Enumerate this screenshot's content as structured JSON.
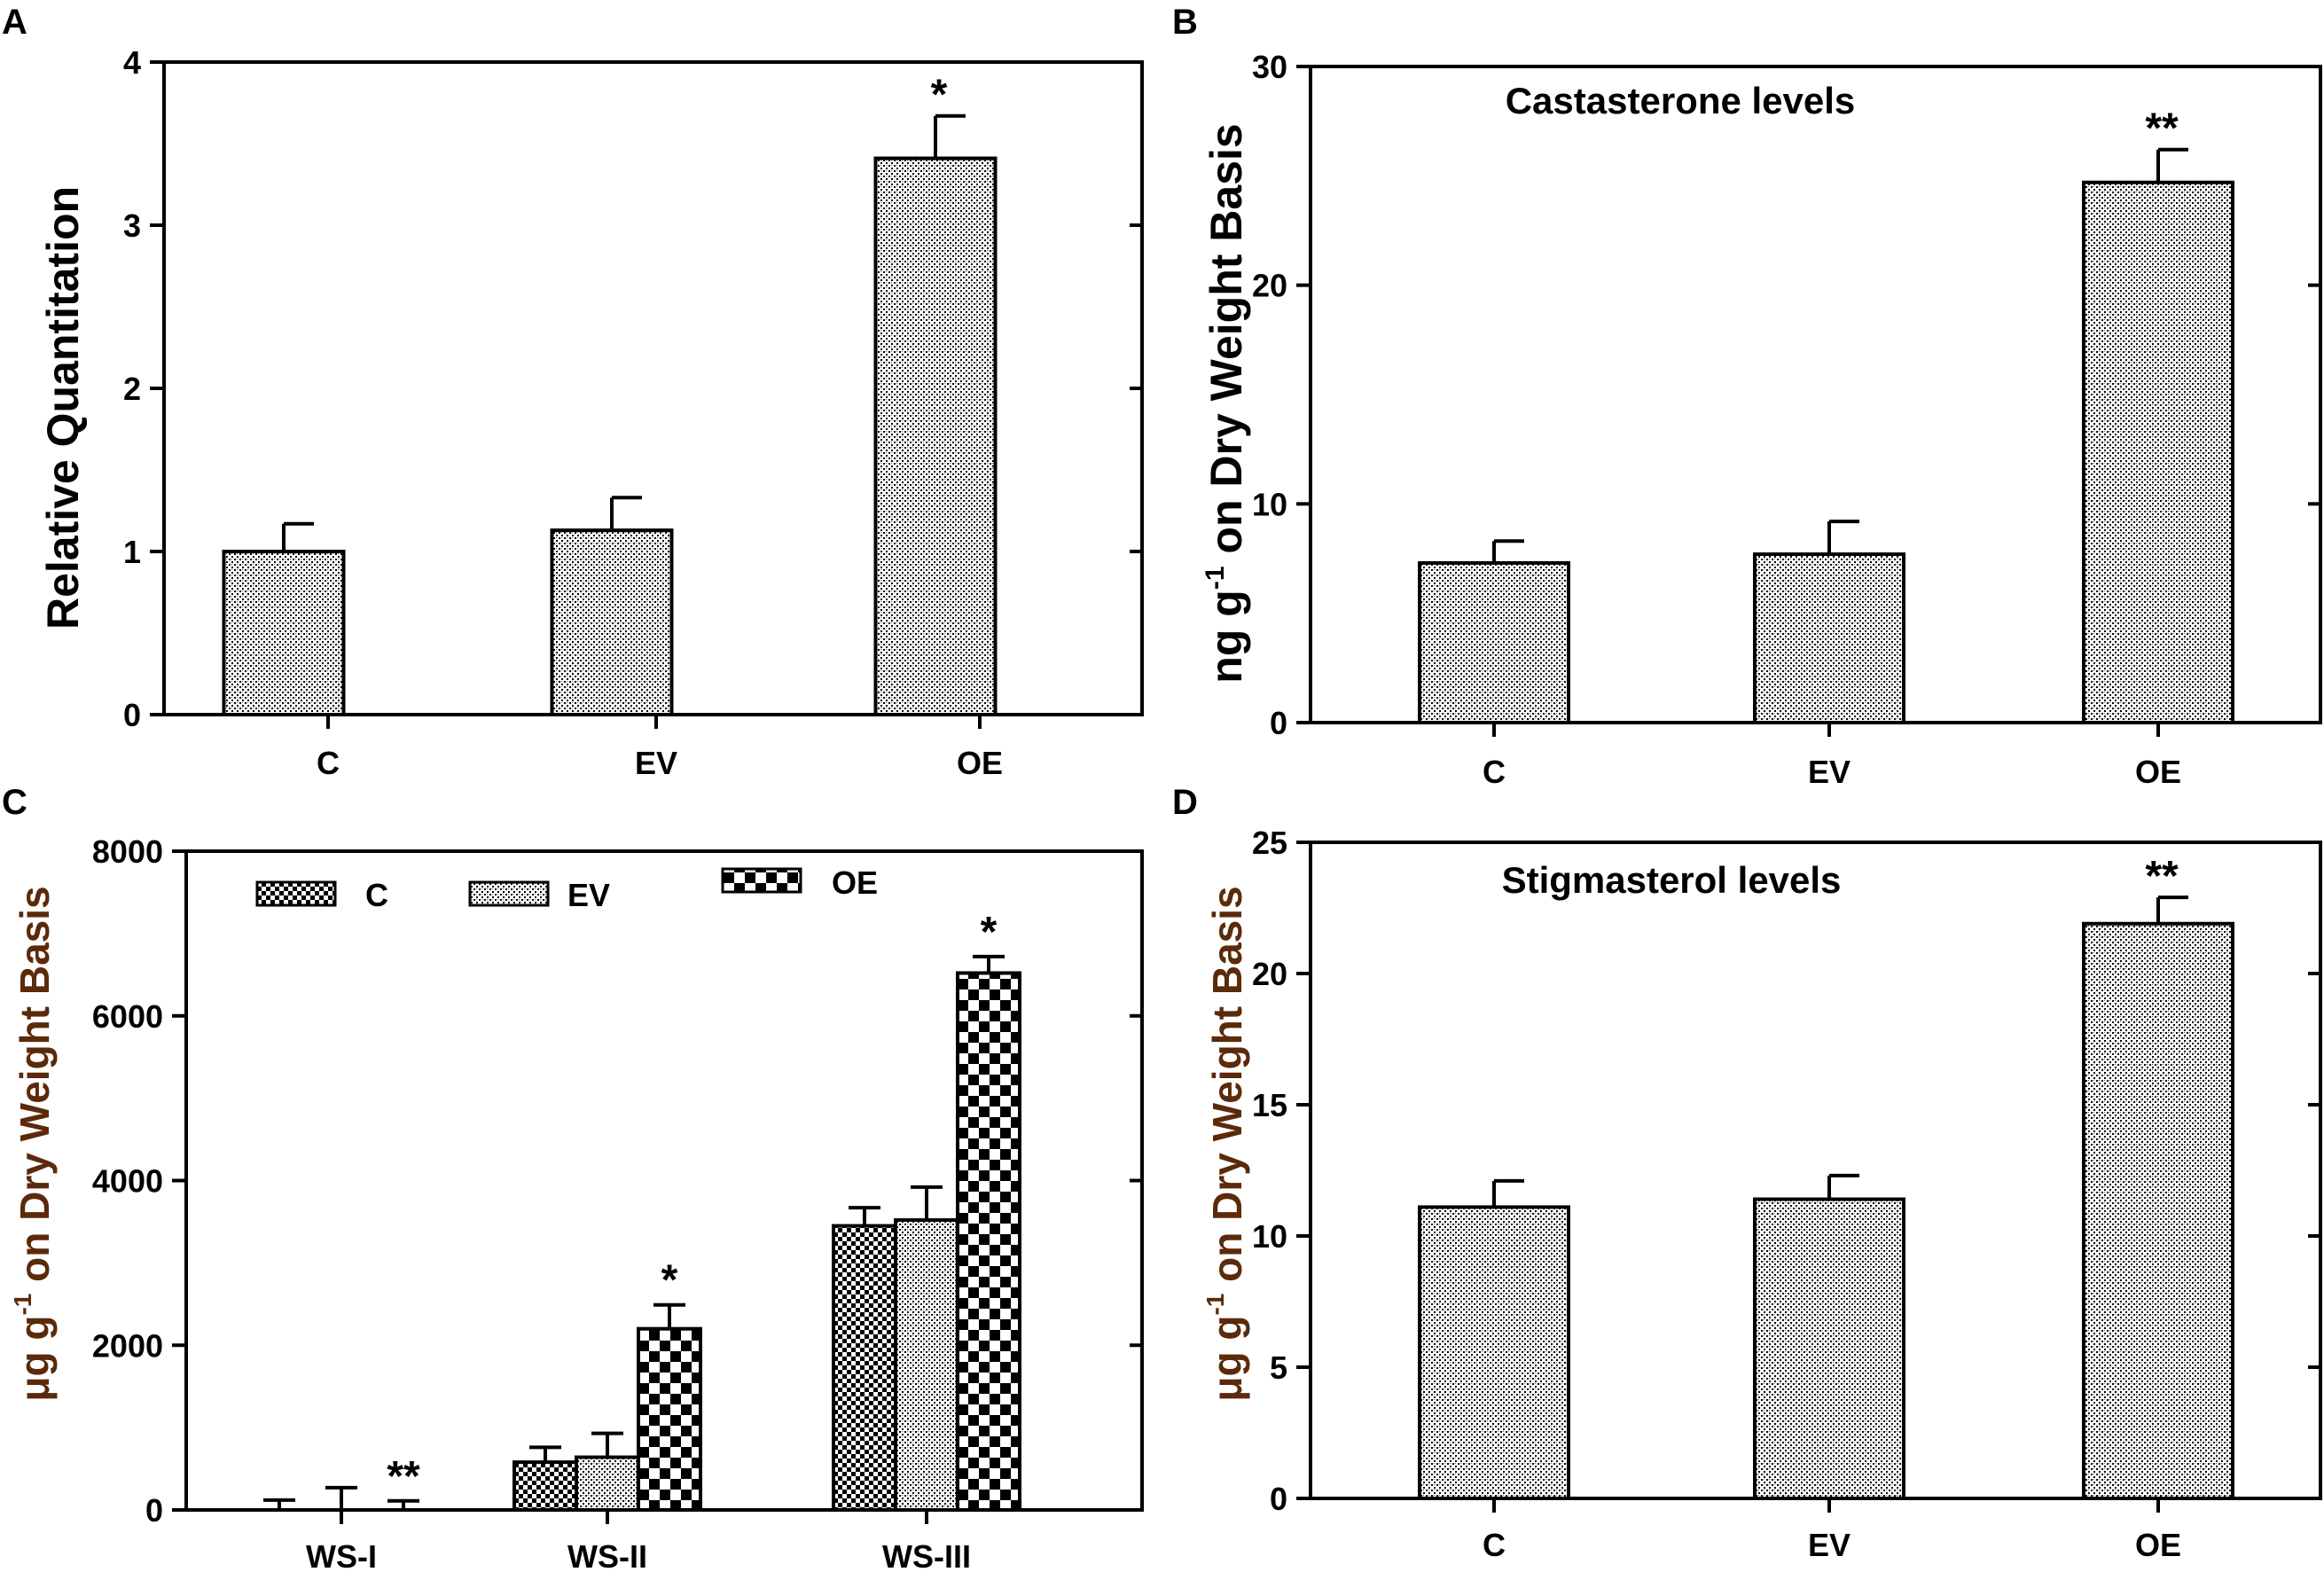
{
  "chart_data": [
    {
      "panel": "A",
      "type": "bar",
      "title": "",
      "ylabel": "Relative Quantitation",
      "categories": [
        "C",
        "EV",
        "OE"
      ],
      "values": [
        1.0,
        1.13,
        3.41
      ],
      "errors": [
        0.17,
        0.2,
        0.26
      ],
      "significance": [
        "",
        "",
        "*"
      ],
      "ylim": [
        0,
        4
      ],
      "yticks": [
        0,
        1,
        2,
        3,
        4
      ],
      "pattern": "stipple"
    },
    {
      "panel": "B",
      "type": "bar",
      "title": "Castasterone levels",
      "ylabel": "ng g-1 on Dry Weight Basis",
      "ylabel_parts": {
        "pre": "ng g",
        "sup": "-1",
        "post": " on  Dry Weight Basis"
      },
      "categories": [
        "C",
        "EV",
        "OE"
      ],
      "values": [
        7.3,
        7.7,
        24.7
      ],
      "errors": [
        1.0,
        1.5,
        1.5
      ],
      "significance": [
        "",
        "",
        "**"
      ],
      "ylim": [
        0,
        30
      ],
      "yticks": [
        0,
        10,
        20,
        30
      ],
      "pattern": "stipple"
    },
    {
      "panel": "C",
      "type": "bar",
      "title": "",
      "ylabel": "μg g-1 on Dry Weight Basis",
      "ylabel_parts": {
        "pre": "μg g",
        "sup": "-1",
        "post": " on Dry Weight Basis"
      },
      "categories": [
        "WS-I",
        "WS-II",
        "WS-III"
      ],
      "series": [
        {
          "name": "C",
          "values": [
            0,
            580,
            3450
          ],
          "errors": [
            120,
            180,
            220
          ],
          "pattern": "check-fine"
        },
        {
          "name": "EV",
          "values": [
            0,
            640,
            3520
          ],
          "errors": [
            270,
            290,
            400
          ],
          "pattern": "stipple"
        },
        {
          "name": "OE",
          "values": [
            0,
            2200,
            6520
          ],
          "errors": [
            110,
            290,
            200
          ],
          "pattern": "check-large"
        }
      ],
      "significance": [
        [
          "",
          "",
          "**"
        ],
        [
          "",
          "",
          "*"
        ],
        [
          "",
          "",
          "*"
        ]
      ],
      "ylim": [
        0,
        8000
      ],
      "yticks": [
        0,
        2000,
        4000,
        6000,
        8000
      ],
      "legend": "top"
    },
    {
      "panel": "D",
      "type": "bar",
      "title": "Stigmasterol levels",
      "ylabel": "μg g-1 on Dry Weight Basis",
      "ylabel_parts": {
        "pre": "μg g",
        "sup": "-1",
        "post": " on Dry Weight Basis"
      },
      "categories": [
        "C",
        "EV",
        "OE"
      ],
      "values": [
        11.1,
        11.4,
        21.9
      ],
      "errors": [
        1.0,
        0.9,
        1.0
      ],
      "significance": [
        "",
        "",
        "**"
      ],
      "ylim": [
        0,
        25
      ],
      "yticks": [
        0,
        5,
        10,
        15,
        20,
        25
      ],
      "pattern": "stipple"
    }
  ]
}
